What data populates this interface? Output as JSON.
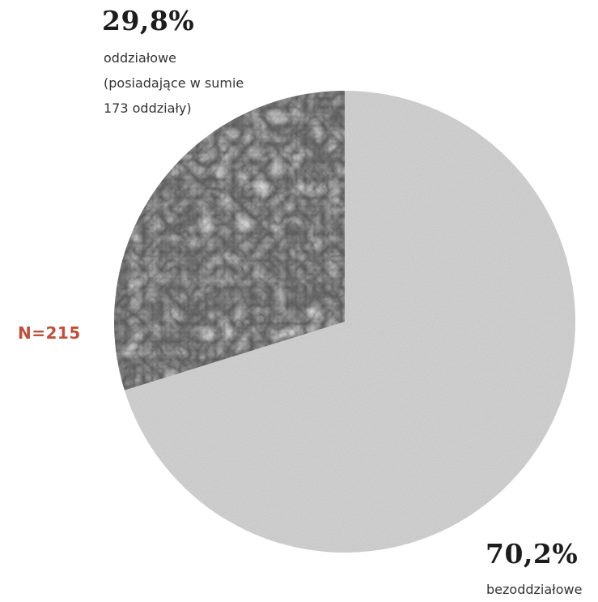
{
  "chart_data": {
    "type": "pie",
    "n_label": "N=215",
    "slices": [
      {
        "percent_label": "70,2%",
        "value": 70.2,
        "label_lines": [
          "bezoddziałowe"
        ]
      },
      {
        "percent_label": "29,8%",
        "value": 29.8,
        "label_lines": [
          "oddziałowe",
          "(posiadające w sumie",
          "173 oddziały)"
        ]
      }
    ]
  },
  "colors": {
    "large_slice": "#d4d4d4",
    "small_slice": "#5b5b5b",
    "n_label": "#c0503c"
  }
}
